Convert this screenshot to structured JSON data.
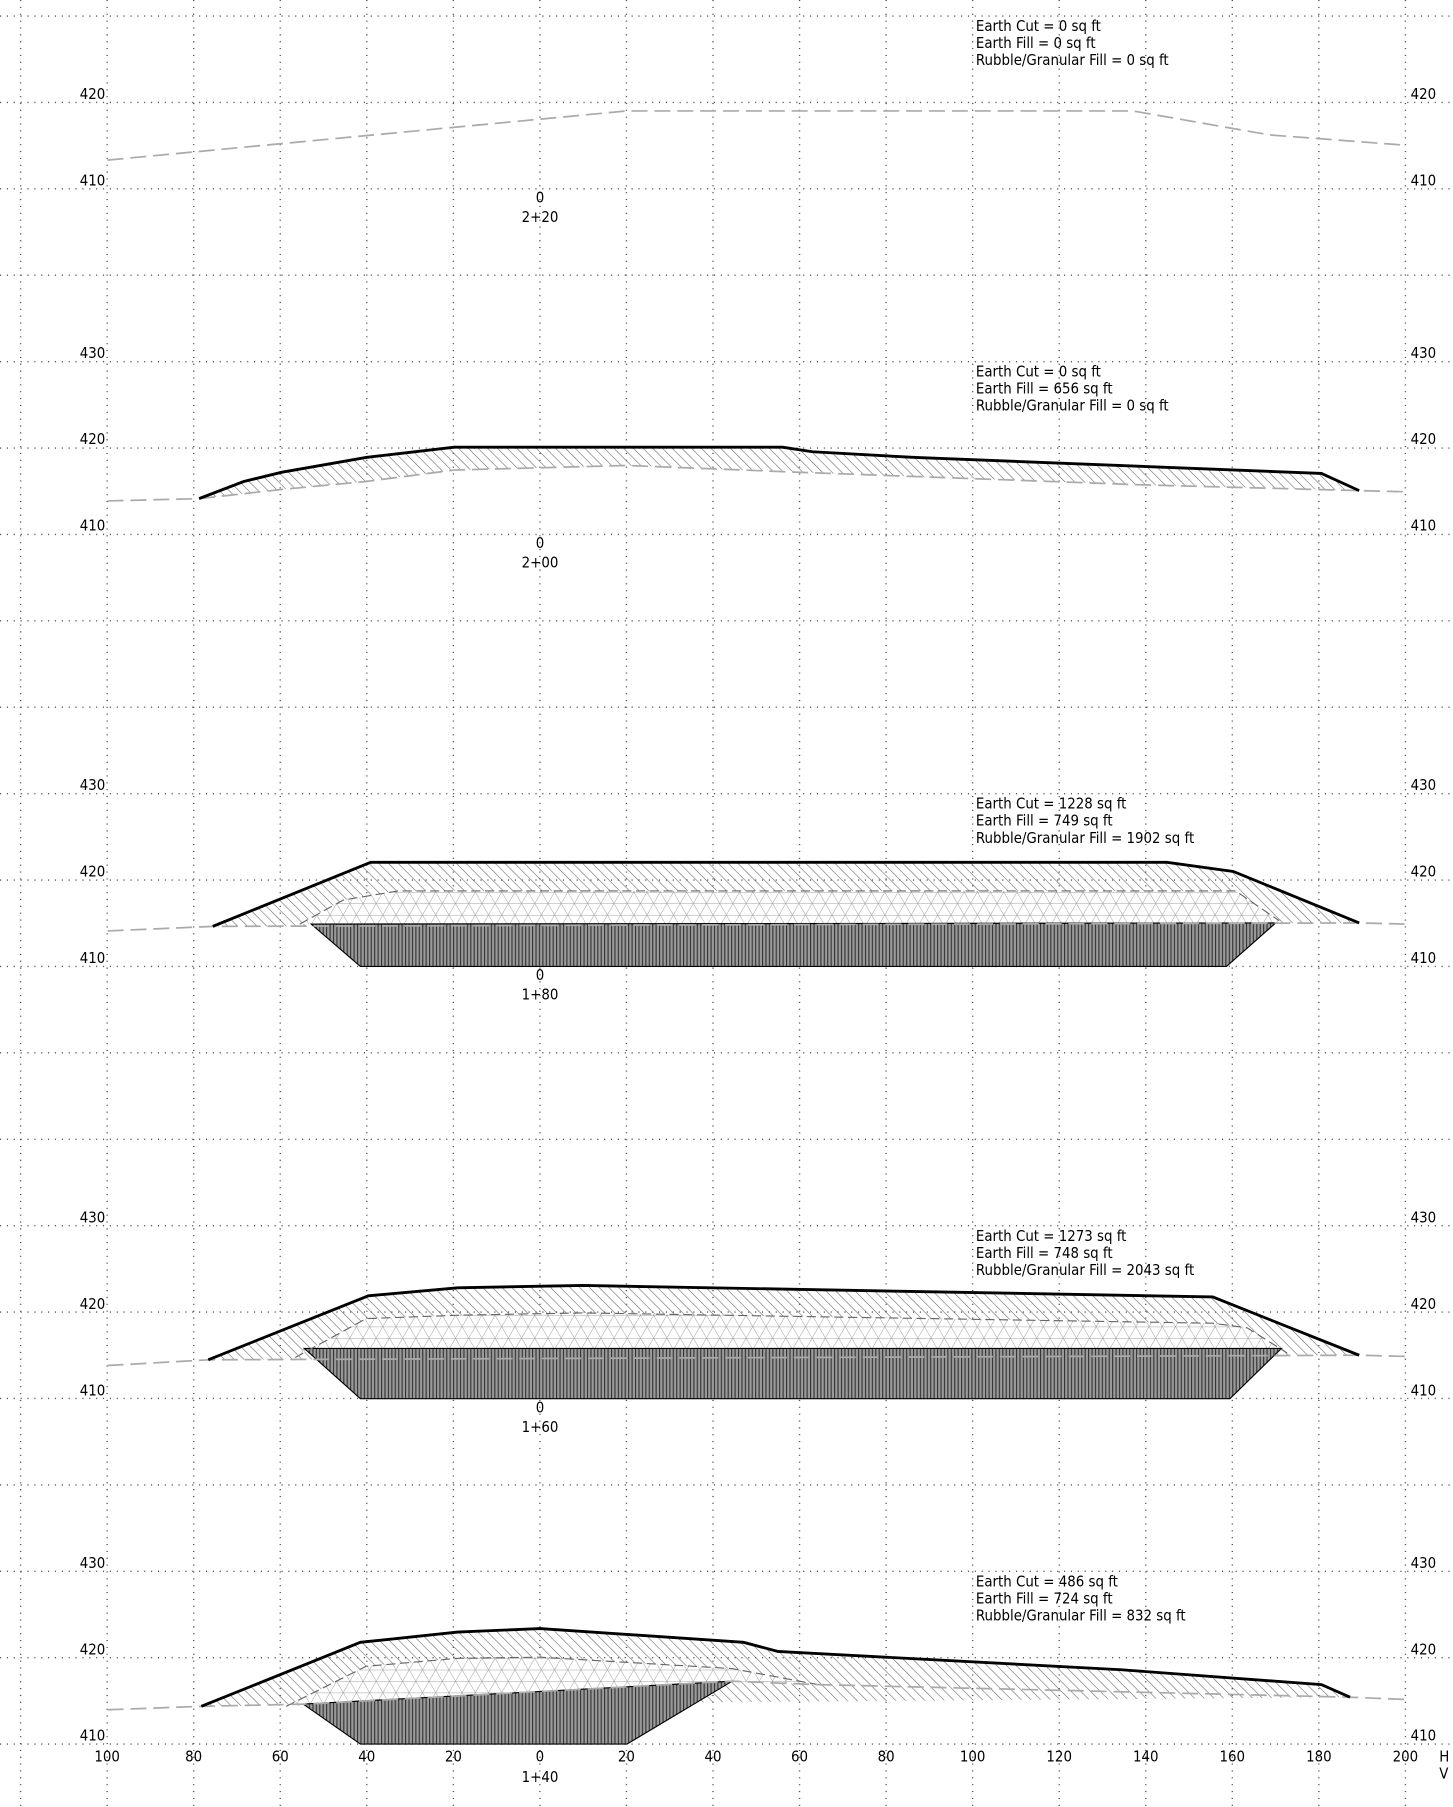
{
  "sections": [
    {
      "station": "2+20",
      "offset": "0",
      "quantities": [
        "Earth Cut = 0 sq ft",
        "Earth Fill = 0 sq ft",
        "Rubble/Granular Fill = 0 sq ft"
      ],
      "elevations_left": [
        "420",
        "410"
      ],
      "elevations_right": [
        "420",
        "410"
      ]
    },
    {
      "station": "2+00",
      "offset": "0",
      "quantities": [
        "Earth Cut = 0 sq ft",
        "Earth Fill = 656 sq ft",
        "Rubble/Granular Fill = 0 sq ft"
      ],
      "elevations_left": [
        "430",
        "420",
        "410"
      ],
      "elevations_right": [
        "430",
        "420",
        "410"
      ]
    },
    {
      "station": "1+80",
      "offset": "0",
      "quantities": [
        "Earth Cut = 1228 sq ft",
        "Earth Fill = 749 sq ft",
        "Rubble/Granular Fill = 1902 sq ft"
      ],
      "elevations_left": [
        "430",
        "420",
        "410"
      ],
      "elevations_right": [
        "430",
        "420",
        "410"
      ]
    },
    {
      "station": "1+60",
      "offset": "0",
      "quantities": [
        "Earth Cut = 1273 sq ft",
        "Earth Fill = 748 sq ft",
        "Rubble/Granular Fill = 2043 sq ft"
      ],
      "elevations_left": [
        "430",
        "420",
        "410"
      ],
      "elevations_right": [
        "430",
        "420",
        "410"
      ]
    },
    {
      "station": "1+40",
      "quantities": [
        "Earth Cut = 486 sq ft",
        "Earth Fill = 724 sq ft",
        "Rubble/Granular Fill = 832 sq ft"
      ],
      "elevations_left": [
        "430",
        "420",
        "410"
      ],
      "elevations_right": [
        "430",
        "420",
        "410"
      ]
    }
  ],
  "x_axis": {
    "labels": [
      "100",
      "80",
      "60",
      "40",
      "20",
      "0",
      "20",
      "40",
      "60",
      "80",
      "100",
      "120",
      "140",
      "160",
      "180",
      "200"
    ],
    "units": [
      "H",
      "V"
    ]
  }
}
